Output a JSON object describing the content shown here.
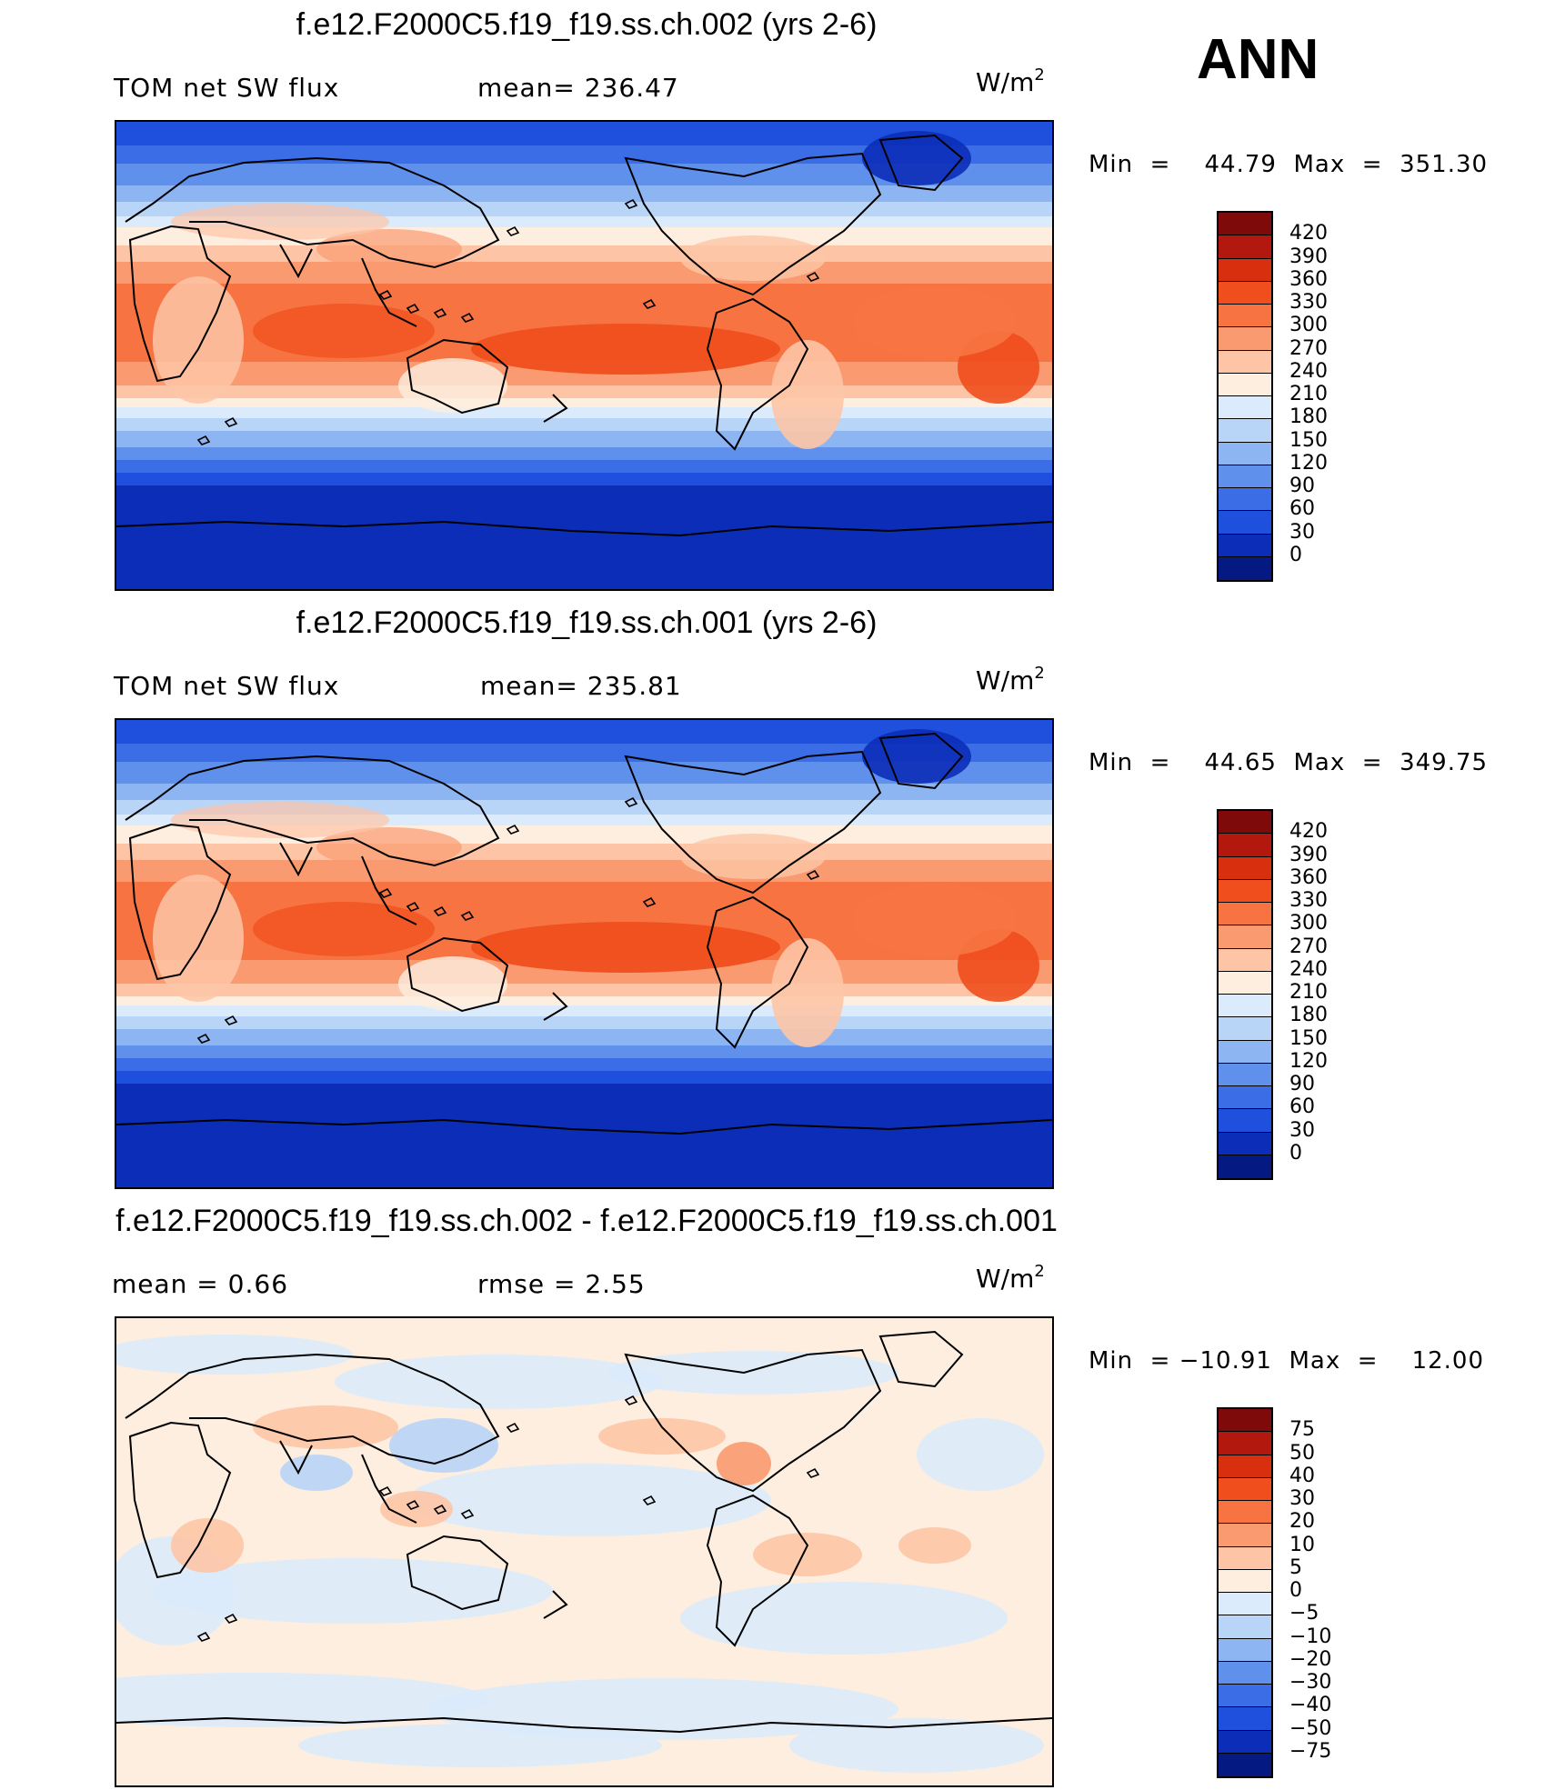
{
  "season": "ANN",
  "panels": [
    {
      "title": "f.e12.F2000C5.f19_f19.ss.ch.002 (yrs 2-6)",
      "left_label": "TOM  net  SW  flux",
      "center_label": "mean=  236.47",
      "units": "W/m",
      "units_exp": "2",
      "minmax": "Min  =    44.79  Max  =  351.30",
      "type": "abs"
    },
    {
      "title": "f.e12.F2000C5.f19_f19.ss.ch.001 (yrs 2-6)",
      "left_label": "TOM  net  SW  flux",
      "center_label": "mean=  235.81",
      "units": "W/m",
      "units_exp": "2",
      "minmax": "Min  =    44.65  Max  =  349.75",
      "type": "abs"
    },
    {
      "title": "f.e12.F2000C5.f19_f19.ss.ch.002 - f.e12.F2000C5.f19_f19.ss.ch.001",
      "left_label": "mean  =     0.66",
      "center_label": "rmse  =     2.55",
      "units": "W/m",
      "units_exp": "2",
      "minmax": "Min  = −10.91  Max  =    12.00",
      "type": "diff"
    }
  ],
  "colorbars": {
    "abs": {
      "labels": [
        "420",
        "390",
        "360",
        "330",
        "300",
        "270",
        "240",
        "210",
        "180",
        "150",
        "120",
        "90",
        "60",
        "30",
        "0"
      ],
      "colors": [
        "#7e0a0a",
        "#b2180e",
        "#d8300f",
        "#f04e1d",
        "#f77442",
        "#fa9a70",
        "#fdc5a6",
        "#fdeee0",
        "#dcebfb",
        "#b8d4f7",
        "#8db5f2",
        "#5f90ec",
        "#3b6de6",
        "#1f4fdd",
        "#0c2db8",
        "#041a82"
      ]
    },
    "diff": {
      "labels": [
        "75",
        "50",
        "40",
        "30",
        "20",
        "10",
        "5",
        "0",
        "−5",
        "−10",
        "−20",
        "−30",
        "−40",
        "−50",
        "−75"
      ],
      "colors": [
        "#7e0a0a",
        "#b2180e",
        "#d8300f",
        "#f04e1d",
        "#f77442",
        "#fa9a70",
        "#fdc5a6",
        "#fdeee0",
        "#dcebfb",
        "#b8d4f7",
        "#8db5f2",
        "#5f90ec",
        "#3b6de6",
        "#1f4fdd",
        "#0c2db8",
        "#041a82"
      ]
    }
  }
}
